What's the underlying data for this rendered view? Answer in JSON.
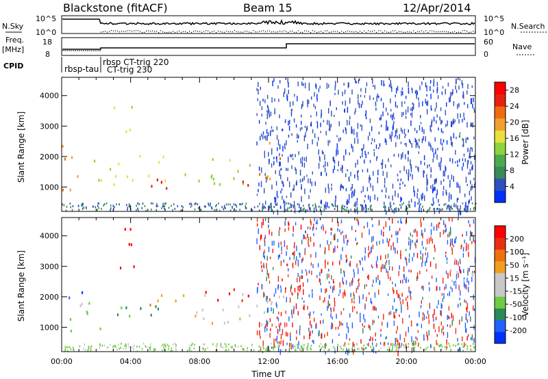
{
  "header": {
    "station": "Blackstone (fitACF)",
    "beam": "Beam 15",
    "date": "12/Apr/2014"
  },
  "summary_panels": {
    "nsky_label": "N.Sky",
    "nsearch_label": "N.Search",
    "noise_ticks": [
      "10^5",
      "10^0"
    ],
    "freq_label_top": "Freq.",
    "freq_label_unit": "[MHz]",
    "freq_ticks": [
      "18",
      "8"
    ],
    "nave_label": "Nave",
    "nave_ticks": [
      "60",
      "0"
    ],
    "cpid_label": "CPID",
    "cpid_entries": [
      "rbsp-tau",
      "rbsp CT-trig 220",
      "CT-trig 230"
    ]
  },
  "colors": {
    "power_scale": [
      "#0030ff",
      "#3050c0",
      "#3a8a5a",
      "#4caa4c",
      "#8cd43c",
      "#e8e040",
      "#f0a030",
      "#f06a10",
      "#e82010",
      "#ff0000"
    ],
    "velocity_scale": [
      "#0030ff",
      "#2060ff",
      "#2a8a58",
      "#70cc40",
      "#c8c8c8",
      "#c8c8c8",
      "#f0a020",
      "#f07010",
      "#e83010",
      "#ff0000"
    ]
  },
  "chart_data": [
    {
      "type": "heatmap",
      "panel": "power",
      "ylabel": "Slant Range [km]",
      "yticks": [
        1000,
        2000,
        3000,
        4000
      ],
      "ylim": [
        200,
        4600
      ],
      "xlim_hours": [
        0,
        24
      ],
      "colorbar": {
        "label": "Power [dB]",
        "ticks": [
          "4",
          "8",
          "12",
          "16",
          "20",
          "24",
          "28"
        ],
        "range": [
          0,
          30
        ]
      },
      "regions": [
        {
          "x": [
            0.0,
            1.2
          ],
          "y": [
            900,
            2500
          ],
          "value": 20
        },
        {
          "x": [
            1.2,
            3.0
          ],
          "y": [
            1200,
            1900
          ],
          "value": 14
        },
        {
          "x": [
            3.0,
            6.0
          ],
          "y": [
            1100,
            2100
          ],
          "value": 16
        },
        {
          "x": [
            4.5,
            7.0
          ],
          "y": [
            900,
            1400
          ],
          "value": 26
        },
        {
          "x": [
            7.0,
            11.0
          ],
          "y": [
            1000,
            2000
          ],
          "value": 14
        },
        {
          "x": [
            9.5,
            10.8
          ],
          "y": [
            950,
            1500
          ],
          "value": 24
        },
        {
          "x": [
            11.3,
            12.8
          ],
          "y": [
            1300,
            2500
          ],
          "value": 20
        },
        {
          "x": [
            3.0,
            4.2
          ],
          "y": [
            2800,
            3700
          ],
          "value": 16
        },
        {
          "x": [
            22.8,
            24.0
          ],
          "y": [
            2000,
            3400
          ],
          "value": 5
        }
      ]
    },
    {
      "type": "heatmap",
      "panel": "velocity",
      "xlabel": "Time UT",
      "ylabel": "Slant Range [km]",
      "yticks": [
        1000,
        2000,
        3000,
        4000
      ],
      "ylim": [
        200,
        4600
      ],
      "xlim_hours": [
        0,
        24
      ],
      "xticks": [
        "00:00",
        "04:00",
        "08:00",
        "12:00",
        "16:00",
        "20:00",
        "00:00"
      ],
      "colorbar": {
        "label": "Velocity [m s⁻¹]",
        "ticks": [
          "200",
          "100",
          "50",
          "15",
          "-15",
          "-50",
          "-100",
          "-200"
        ],
        "range": [
          -250,
          250
        ]
      },
      "regions": [
        {
          "x": [
            0.0,
            1.2
          ],
          "y": [
            1900,
            2500
          ],
          "value": -200
        },
        {
          "x": [
            0.0,
            2.5
          ],
          "y": [
            900,
            1900
          ],
          "value": -60
        },
        {
          "x": [
            3.0,
            6.0
          ],
          "y": [
            1100,
            1900
          ],
          "value": -110
        },
        {
          "x": [
            5.0,
            7.5
          ],
          "y": [
            1600,
            2200
          ],
          "value": 90
        },
        {
          "x": [
            7.5,
            11.0
          ],
          "y": [
            1100,
            2200
          ],
          "value": 40
        },
        {
          "x": [
            8.0,
            11.0
          ],
          "y": [
            1900,
            2500
          ],
          "value": 220
        },
        {
          "x": [
            3.0,
            4.2
          ],
          "y": [
            2800,
            4300
          ],
          "value": 220
        },
        {
          "x": [
            11.0,
            13.5
          ],
          "y": [
            1100,
            2100
          ],
          "value": 0
        },
        {
          "x": [
            22.5,
            24.0
          ],
          "y": [
            2000,
            3400
          ],
          "value": 0
        }
      ]
    }
  ]
}
